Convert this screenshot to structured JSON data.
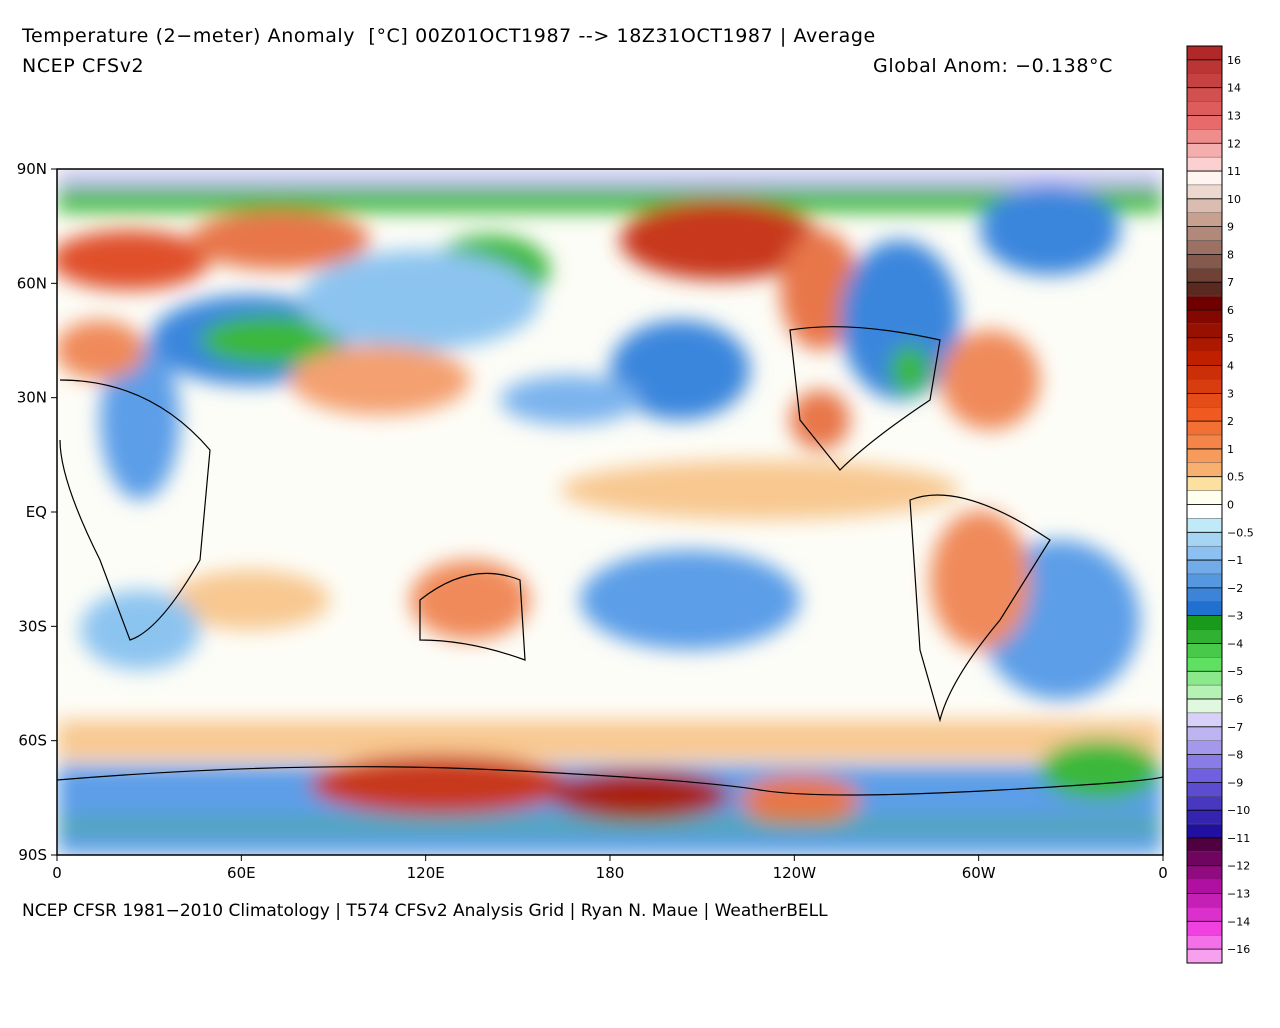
{
  "header": {
    "title": "Temperature (2−meter) Anomaly  [°C] 00Z01OCT1987 --> 18Z31OCT1987 | Average",
    "subtitle": "NCEP CFSv2",
    "global_anom": "Global Anom: −0.138°C"
  },
  "map": {
    "lat_labels": [
      "90N",
      "60N",
      "30N",
      "EQ",
      "30S",
      "60S",
      "90S"
    ],
    "lon_labels": [
      "0",
      "60E",
      "120E",
      "180",
      "120W",
      "60W",
      "0"
    ]
  },
  "colorbar": {
    "labels": [
      "16",
      "14",
      "13",
      "12",
      "11",
      "10",
      "9",
      "8",
      "7",
      "6",
      "5",
      "4",
      "3",
      "2",
      "1",
      "0.5",
      "0",
      "−0.5",
      "−1",
      "−2",
      "−3",
      "−4",
      "−5",
      "−6",
      "−7",
      "−8",
      "−9",
      "−10",
      "−11",
      "−12",
      "−13",
      "−14",
      "−16"
    ]
  },
  "footer": {
    "text": "NCEP CFSR 1981−2010 Climatology | T574 CFSv2 Analysis Grid | Ryan N. Maue | WeatherBELL"
  }
}
